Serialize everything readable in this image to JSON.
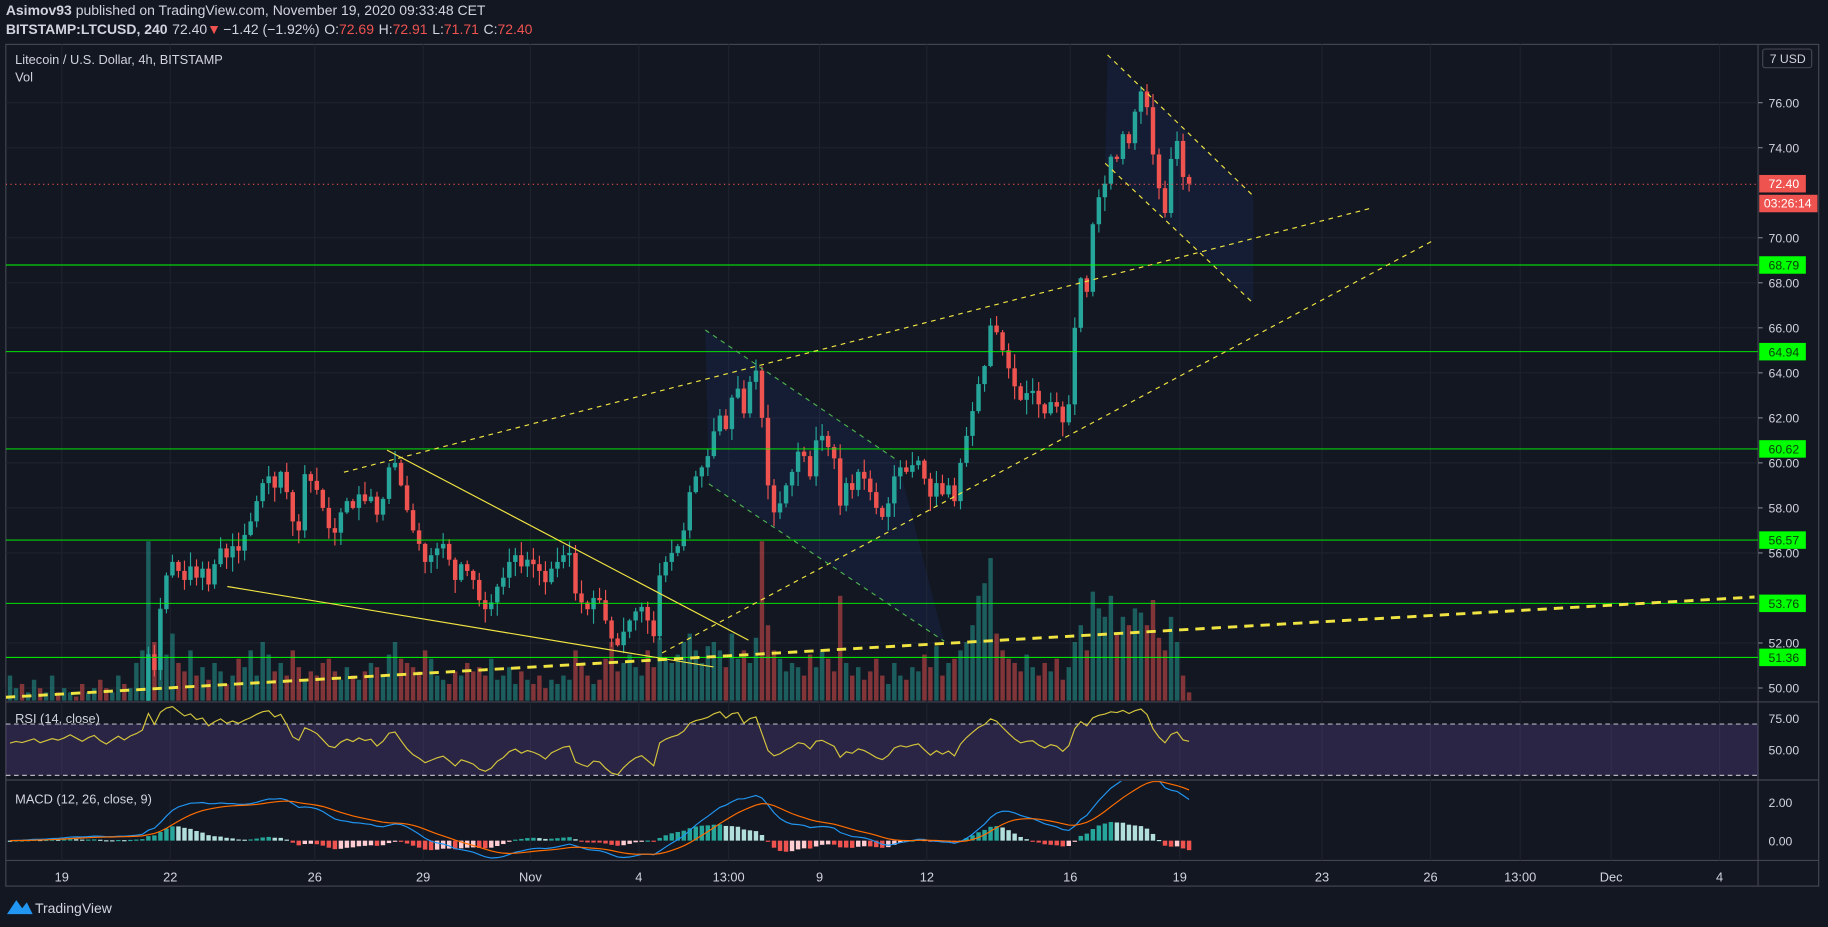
{
  "header": {
    "author": "Asimov93",
    "published": " published on TradingView.com, November 19, 2020 09:33:48 CET",
    "symbol": "BITSTAMP:LTCUSD, 240",
    "last": "72.40",
    "change": "−1.42 (−1.92%)",
    "o_label": "O:",
    "o": "72.69",
    "h_label": "H:",
    "h": "72.91",
    "l_label": "L:",
    "l": "71.71",
    "c_label": "C:",
    "c": "72.40"
  },
  "legend": {
    "title": "Litecoin / U.S. Dollar, 4h, BITSTAMP",
    "vol": "Vol",
    "rsi": "RSI (14, close)",
    "macd": "MACD (12, 26, close, 9)"
  },
  "price_axis": {
    "currency": "7 USD",
    "labels": [
      "76.00",
      "74.00",
      "70.00",
      "68.00",
      "66.00",
      "64.00",
      "62.00",
      "60.00",
      "58.00",
      "56.00",
      "52.00",
      "50.00"
    ],
    "current_price": "72.40",
    "countdown": "03:26:14"
  },
  "levels": [
    "68.79",
    "64.94",
    "60.62",
    "56.57",
    "53.76",
    "51.36"
  ],
  "rsi_axis": [
    "75.00",
    "50.00"
  ],
  "macd_axis": [
    "2.00",
    "0.00"
  ],
  "time_axis": [
    "19",
    "22",
    "26",
    "29",
    "Nov",
    "4",
    "13:00",
    "9",
    "12",
    "16",
    "19",
    "23",
    "26",
    "13:00",
    "Dec",
    "4"
  ],
  "footer": {
    "brand": "TradingView"
  },
  "colors": {
    "up": "#26a69a",
    "down": "#ef5350",
    "level": "#00ff00",
    "trend": "#f0e442",
    "rsi": "#d4c53c",
    "macd": "#2196f3",
    "signal": "#ff6d00"
  },
  "chart_data": {
    "type": "candlestick",
    "title": "Litecoin / U.S. Dollar, 4h, BITSTAMP",
    "interval": "4h",
    "start": "2020-10-17 12:00",
    "ylim": [
      49.5,
      78
    ],
    "open_first": 47.3,
    "close": [
      47.4,
      47.6,
      47.5,
      47.7,
      47.9,
      47.6,
      47.8,
      48.0,
      47.9,
      48.1,
      48.4,
      48.2,
      48.0,
      48.3,
      48.5,
      48.2,
      48.0,
      48.3,
      48.6,
      48.4,
      48.7,
      48.9,
      49.2,
      51.5,
      50.8,
      53.5,
      55.0,
      55.6,
      55.2,
      54.8,
      55.4,
      54.9,
      55.3,
      54.6,
      55.5,
      56.2,
      55.8,
      56.3,
      56.1,
      56.8,
      57.4,
      58.3,
      59.1,
      59.4,
      58.9,
      59.6,
      58.7,
      57.4,
      57.0,
      59.5,
      59.2,
      58.8,
      58.0,
      57.1,
      56.9,
      57.8,
      58.3,
      58.0,
      58.6,
      58.3,
      58.5,
      57.7,
      58.4,
      59.8,
      60.0,
      59.0,
      57.9,
      57.0,
      56.4,
      55.6,
      55.9,
      56.2,
      56.4,
      55.7,
      54.8,
      55.5,
      55.2,
      54.8,
      53.9,
      53.5,
      53.8,
      54.5,
      54.9,
      55.6,
      55.9,
      55.4,
      55.7,
      55.5,
      55.2,
      54.7,
      55.3,
      55.6,
      55.9,
      56.0,
      54.2,
      53.8,
      53.5,
      54.0,
      53.9,
      53.0,
      52.2,
      51.9,
      52.5,
      53.0,
      53.4,
      53.6,
      53.0,
      52.3,
      55.0,
      55.6,
      56.0,
      56.3,
      57.0,
      58.7,
      59.4,
      59.8,
      60.3,
      61.4,
      62.1,
      61.5,
      62.9,
      63.3,
      62.2,
      63.6,
      64.1,
      62.0,
      59.0,
      57.8,
      58.2,
      59.0,
      59.6,
      60.5,
      60.3,
      59.4,
      61.0,
      61.2,
      60.7,
      60.2,
      58.1,
      59.1,
      58.8,
      59.6,
      59.3,
      58.7,
      58.0,
      57.6,
      58.2,
      59.4,
      59.8,
      59.6,
      59.9,
      60.1,
      59.3,
      58.5,
      59.1,
      58.6,
      59.0,
      58.3,
      60.0,
      61.2,
      62.3,
      63.5,
      64.3,
      66.1,
      65.8,
      65.0,
      64.2,
      63.4,
      62.8,
      63.1,
      63.2,
      62.6,
      62.2,
      62.7,
      62.5,
      61.8,
      62.6,
      66.0,
      68.2,
      67.6,
      70.6,
      71.8,
      72.4,
      73.6,
      73.5,
      74.6,
      74.2,
      75.6,
      76.5,
      75.8,
      73.7,
      72.2,
      71.1,
      73.5,
      74.3,
      72.7,
      72.4
    ],
    "volume": [
      6,
      3,
      4,
      2,
      5,
      3,
      2,
      6,
      2,
      3,
      2,
      1,
      4,
      2,
      3,
      5,
      3,
      2,
      6,
      4,
      3,
      9,
      12,
      38,
      14,
      22,
      11,
      16,
      9,
      7,
      12,
      6,
      8,
      5,
      9,
      7,
      4,
      6,
      10,
      8,
      12,
      6,
      14,
      11,
      7,
      9,
      6,
      12,
      8,
      5,
      7,
      6,
      9,
      10,
      7,
      5,
      8,
      6,
      5,
      7,
      9,
      8,
      6,
      11,
      14,
      10,
      9,
      8,
      7,
      12,
      10,
      6,
      5,
      4,
      7,
      6,
      9,
      7,
      8,
      6,
      10,
      5,
      6,
      8,
      4,
      7,
      5,
      4,
      6,
      3,
      5,
      4,
      6,
      5,
      12,
      9,
      6,
      4,
      5,
      10,
      14,
      7,
      9,
      11,
      8,
      6,
      12,
      8,
      15,
      10,
      9,
      11,
      14,
      16,
      12,
      9,
      13,
      14,
      12,
      8,
      16,
      10,
      12,
      9,
      15,
      38,
      18,
      12,
      10,
      7,
      9,
      8,
      6,
      11,
      8,
      12,
      10,
      7,
      25,
      9,
      6,
      8,
      5,
      7,
      10,
      6,
      4,
      9,
      6,
      5,
      8,
      7,
      11,
      8,
      13,
      6,
      9,
      10,
      12,
      14,
      18,
      25,
      28,
      34,
      16,
      12,
      10,
      9,
      7,
      11,
      8,
      6,
      9,
      7,
      10,
      5,
      8,
      14,
      18,
      12,
      26,
      22,
      20,
      25,
      16,
      20,
      18,
      22,
      21,
      18,
      24,
      15,
      12,
      20,
      14,
      6,
      2
    ],
    "rsi_period": 14,
    "macd_params": [
      12,
      26,
      9
    ]
  }
}
